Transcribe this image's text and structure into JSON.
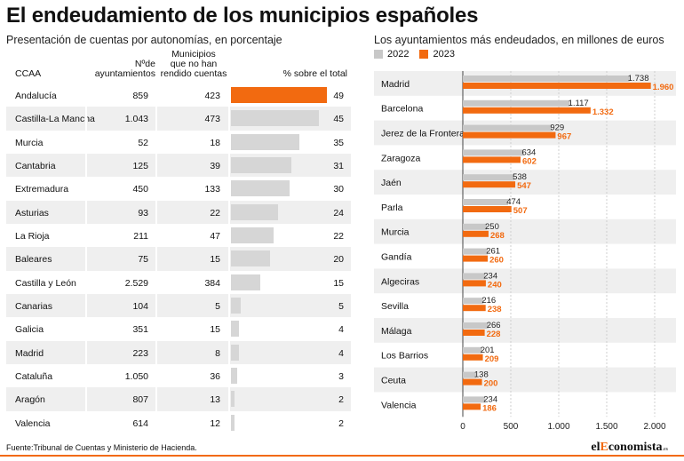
{
  "title": "El endeudamiento de los municipios españoles",
  "left_subtitle": "Presentación de cuentas por autonomías, en porcentaje",
  "right_subtitle": "Los ayuntamientos más endeudados, en millones de euros",
  "source": "Fuente:Tribunal de Cuentas y Ministerio de Hacienda.",
  "brand": {
    "pre": "el",
    "mid": "E",
    "post": "conomista",
    "suffix": ".es"
  },
  "colors": {
    "accent": "#f26a10",
    "grey": "#d6d6d6",
    "grey2022": "#c8c8c8",
    "alt_row": "#efefef"
  },
  "table": {
    "headers": {
      "ccaa": "CCAA",
      "n_line1": "Nºde",
      "n_line2": "ayuntamientos",
      "m_line1": "Municipios",
      "m_line2": "que no han",
      "m_line3": "rendido cuentas",
      "pct": "% sobre el total"
    },
    "rows": [
      {
        "name": "Andalucía",
        "n": "859",
        "m": "423",
        "pct": 49
      },
      {
        "name": "Castilla-La Mancha",
        "n": "1.043",
        "m": "473",
        "pct": 45
      },
      {
        "name": "Murcia",
        "n": "52",
        "m": "18",
        "pct": 35
      },
      {
        "name": "Cantabria",
        "n": "125",
        "m": "39",
        "pct": 31
      },
      {
        "name": "Extremadura",
        "n": "450",
        "m": "133",
        "pct": 30
      },
      {
        "name": "Asturias",
        "n": "93",
        "m": "22",
        "pct": 24
      },
      {
        "name": "La Rioja",
        "n": "211",
        "m": "47",
        "pct": 22
      },
      {
        "name": "Baleares",
        "n": "75",
        "m": "15",
        "pct": 20
      },
      {
        "name": "Castilla y León",
        "n": "2.529",
        "m": "384",
        "pct": 15
      },
      {
        "name": "Canarias",
        "n": "104",
        "m": "5",
        "pct": 5
      },
      {
        "name": "Galicia",
        "n": "351",
        "m": "15",
        "pct": 4
      },
      {
        "name": "Madrid",
        "n": "223",
        "m": "8",
        "pct": 4
      },
      {
        "name": "Cataluña",
        "n": "1.050",
        "m": "36",
        "pct": 3
      },
      {
        "name": "Aragón",
        "n": "807",
        "m": "13",
        "pct": 2
      },
      {
        "name": "Valencia",
        "n": "614",
        "m": "12",
        "pct": 2
      }
    ]
  },
  "chart_data": {
    "type": "bar",
    "orientation": "horizontal",
    "categories": [
      "Madrid",
      "Barcelona",
      "Jerez de la Frontera",
      "Zaragoza",
      "Jaén",
      "Parla",
      "Murcia",
      "Gandía",
      "Algeciras",
      "Sevilla",
      "Málaga",
      "Los Barrios",
      "Ceuta",
      "Valencia"
    ],
    "series": [
      {
        "name": "2022",
        "color": "#c8c8c8",
        "values": [
          1738,
          1117,
          929,
          634,
          538,
          474,
          250,
          261,
          234,
          216,
          266,
          201,
          138,
          234
        ],
        "labels": [
          "1.738",
          "1.117",
          "929",
          "634",
          "538",
          "474",
          "250",
          "261",
          "234",
          "216",
          "266",
          "201",
          "138",
          "234"
        ]
      },
      {
        "name": "2023",
        "color": "#f26a10",
        "values": [
          1960,
          1332,
          967,
          602,
          547,
          507,
          268,
          260,
          240,
          238,
          228,
          209,
          200,
          186
        ],
        "labels": [
          "1.960",
          "1.332",
          "967",
          "602",
          "547",
          "507",
          "268",
          "260",
          "240",
          "238",
          "228",
          "209",
          "200",
          "186"
        ]
      }
    ],
    "xlim": [
      0,
      2000
    ],
    "xticks": [
      0,
      500,
      1000,
      1500,
      2000
    ],
    "xtick_labels": [
      "0",
      "500",
      "1.000",
      "1.500",
      "2.000"
    ],
    "grid": true,
    "legend": "top-left"
  }
}
